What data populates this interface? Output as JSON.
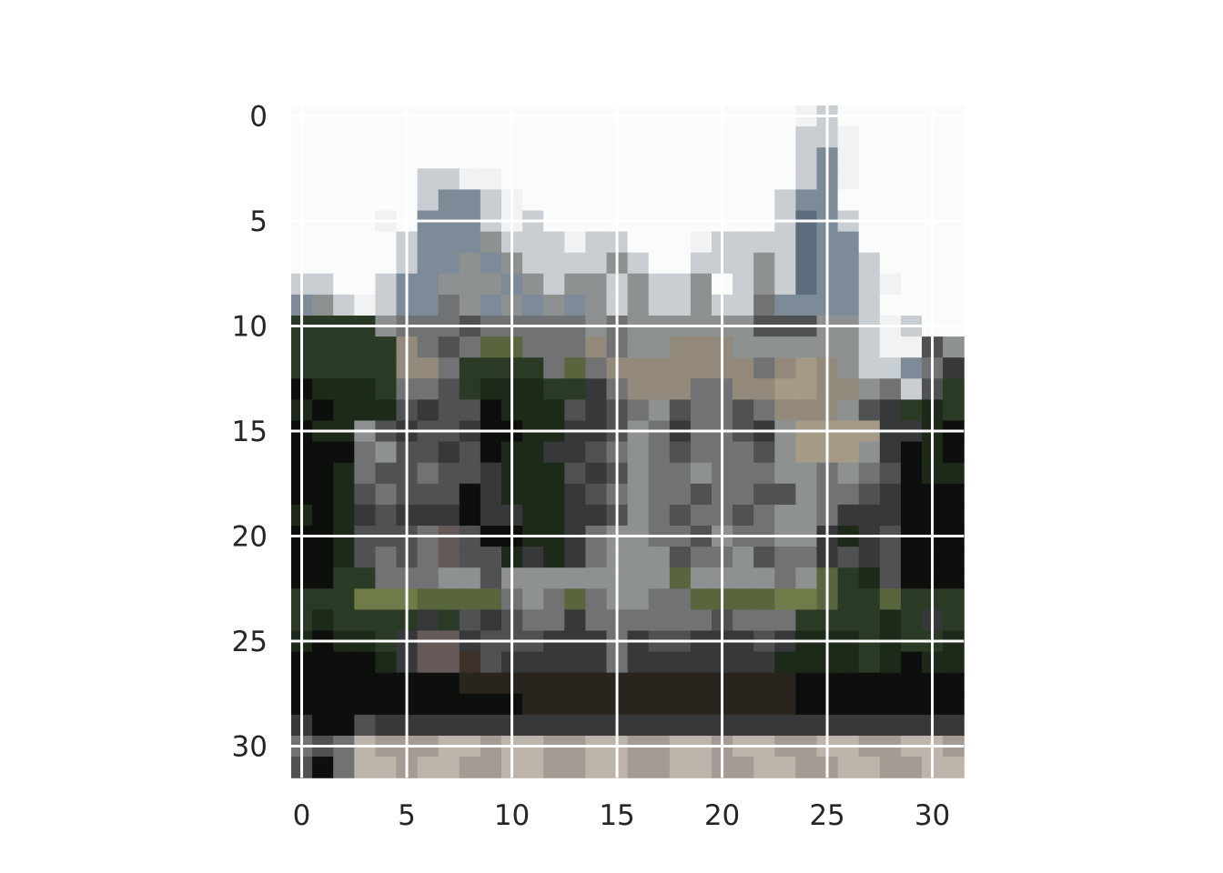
{
  "chart_data": {
    "type": "heatmap",
    "title": "",
    "xlabel": "",
    "ylabel": "",
    "rows": 32,
    "cols": 32,
    "xlim": [
      -0.5,
      31.5
    ],
    "ylim": [
      31.5,
      -0.5
    ],
    "xticks": [
      "0",
      "5",
      "10",
      "15",
      "20",
      "25",
      "30"
    ],
    "yticks": [
      "0",
      "5",
      "10",
      "15",
      "20",
      "25",
      "30"
    ],
    "grid": true,
    "grid_color": "#ffffff",
    "palette": {
      "W": "#fafbfb",
      "w": "#f0f2f3",
      "l": "#c9ced3",
      "b": "#7d8a98",
      "B": "#5d6c7d",
      "g": "#8e9192",
      "m": "#707274",
      "s": "#4f5153",
      "d": "#36383a",
      "k": "#1e211e",
      "K": "#0c0f0b",
      "G": "#2b3a25",
      "F": "#1d2a19",
      "o": "#59663d",
      "O": "#6f7c49",
      "t": "#938a7b",
      "T": "#a59a86",
      "r": "#3c3029",
      "R": "#2a241f",
      "p": "#a49c94",
      "q": "#bdb5ac",
      "v": "#665a58"
    },
    "pixels": [
      "WWWWWWWWWWWWWWWWWWWWWWWWwlWWWWWW",
      "WWWWWWWWWWWWWWWWWWWWWWWWllwWWWWW",
      "WWWWWWWWWWWWWWWWWWWWWWWWlbwWWWWW",
      "WWWWWWllwwWWWWWWWWWWWWWWlbwWWWWW",
      "WWWWWWlbblwWWWWWWWWWWWWlbbWWWWWW",
      "WWWWwWbbblwlWWWWWWWWWWWlBblWWWWW",
      "WWWWWlbbbglllwllWWWwllllBbbWWWWW",
      "WWWWWlbbgbgllllglWWlllglBbblWWWW",
      "llWWlbbgggbglgglgllgWlglBbblwWWW",
      "bglwlbbmgbgbgbglgllgllmbbbblWWWW",
      "GGGGgmmmsmmmmmgmggggggsssgglwlWW",
      "GGGGGtmsmoommmtmggtttgggggglwwsg",
      "GGGGGttmGGGGmomtttttttmtTtgllbmd",
      "KFFFGmmsGFFFGGdmtttmmttTTttgmlsG",
      "FKFFFsdssKFFFsdsmgsmmsmtttgsdGFG",
      "KFFgsdssdKKFFddsgmdmmsdgTTTTddFK",
      "KKKmgssdsKFFddsmgmsmmmsgTTTgdKFK",
      "KKFmssmssdFFFsdsgmmgmmmggmgmsKFF",
      "KKFsmsssKdFFFdsmgmmsmmssgmmsdKKK",
      "FKFdsdddKddFFddsgmsmmsmggmdddKKK",
      "KKFsssmvsKKFFdmggmmsgmmggdFdsKKK",
      "KKFsmsmvssFdFdmgggsmmgsmmdsdsKKK",
      "KKGGmmmggsggggggggoggggmgoGFsKKK",
      "GGGOOOoooomgmomggmmooooOOoGGoGGG",
      "GFGGGGdGsdsmmdmmmmmmsmmmGGGGFGdG",
      "FKFFGdvvdsssdddmdssdddsdFFFGFGGF",
      "KKKKFdvvrsdddddmdddddddFFFFGFKFF",
      "KKKKKKKKRRRRRRRRRRRRRRRRKKKKKKKK",
      "KKKKKKKKKKKRRRRRRRRRRRRRKKKKKKKK",
      "dKKsdddddddddddddddddddddddddddd",
      "msmqpppqqpqqppqqppqqpqqppqqppqqp",
      "sKmqqpqqppqqppqqppqqppqqppqqppqq"
    ]
  }
}
